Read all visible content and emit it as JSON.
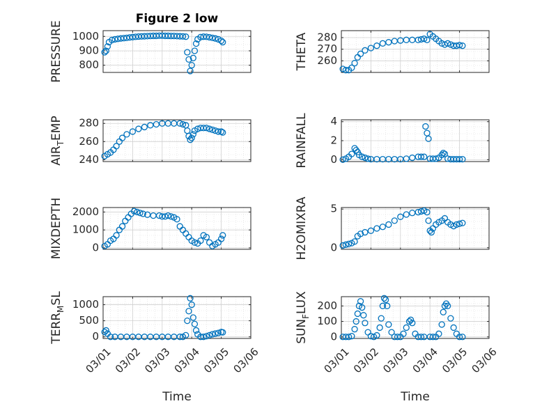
{
  "title": "Figure 2 low",
  "x_label": "Time",
  "marker_color": "#0072BD",
  "x_ticks": [
    "03/01",
    "03/02",
    "03/03",
    "03/04",
    "03/05",
    "03/06"
  ],
  "chart_data": [
    {
      "type": "scatter",
      "title": "Figure 2 low",
      "ylabel_parts": [
        "PRESSURE"
      ],
      "yticks": [
        800,
        900,
        1000
      ],
      "ylim": [
        750,
        1040
      ],
      "xlim": [
        0,
        5
      ],
      "grid": true,
      "points": [
        [
          0.05,
          890
        ],
        [
          0.1,
          900
        ],
        [
          0.15,
          930
        ],
        [
          0.2,
          960
        ],
        [
          0.3,
          975
        ],
        [
          0.4,
          980
        ],
        [
          0.5,
          983
        ],
        [
          0.6,
          986
        ],
        [
          0.7,
          988
        ],
        [
          0.8,
          990
        ],
        [
          0.9,
          993
        ],
        [
          1.0,
          995
        ],
        [
          1.1,
          997
        ],
        [
          1.2,
          999
        ],
        [
          1.3,
          1000
        ],
        [
          1.4,
          1001
        ],
        [
          1.5,
          1002
        ],
        [
          1.6,
          1003
        ],
        [
          1.7,
          1004
        ],
        [
          1.8,
          1004
        ],
        [
          1.9,
          1005
        ],
        [
          2.0,
          1005
        ],
        [
          2.1,
          1004
        ],
        [
          2.2,
          1004
        ],
        [
          2.3,
          1003
        ],
        [
          2.4,
          1003
        ],
        [
          2.5,
          1002
        ],
        [
          2.6,
          1001
        ],
        [
          2.7,
          1000
        ],
        [
          2.8,
          998
        ],
        [
          2.85,
          890
        ],
        [
          2.9,
          840
        ],
        [
          2.95,
          760
        ],
        [
          3.0,
          800
        ],
        [
          3.05,
          850
        ],
        [
          3.1,
          900
        ],
        [
          3.15,
          950
        ],
        [
          3.2,
          980
        ],
        [
          3.3,
          995
        ],
        [
          3.4,
          998
        ],
        [
          3.5,
          997
        ],
        [
          3.6,
          994
        ],
        [
          3.7,
          990
        ],
        [
          3.8,
          986
        ],
        [
          3.9,
          980
        ],
        [
          4.0,
          970
        ],
        [
          4.05,
          960
        ]
      ]
    },
    {
      "type": "scatter",
      "ylabel_parts": [
        "THETA"
      ],
      "yticks": [
        260,
        270,
        280
      ],
      "ylim": [
        250,
        286
      ],
      "xlim": [
        0,
        5
      ],
      "grid": true,
      "points": [
        [
          0.05,
          253
        ],
        [
          0.15,
          252
        ],
        [
          0.25,
          252
        ],
        [
          0.35,
          254
        ],
        [
          0.45,
          258
        ],
        [
          0.55,
          263
        ],
        [
          0.65,
          266
        ],
        [
          0.8,
          269
        ],
        [
          1.0,
          271
        ],
        [
          1.2,
          273
        ],
        [
          1.4,
          275
        ],
        [
          1.6,
          276
        ],
        [
          1.8,
          277
        ],
        [
          2.0,
          277.5
        ],
        [
          2.2,
          278
        ],
        [
          2.4,
          278
        ],
        [
          2.6,
          278
        ],
        [
          2.7,
          278.5
        ],
        [
          2.8,
          279
        ],
        [
          2.9,
          278
        ],
        [
          3.0,
          283
        ],
        [
          3.1,
          281
        ],
        [
          3.2,
          279
        ],
        [
          3.3,
          277
        ],
        [
          3.4,
          275
        ],
        [
          3.5,
          274
        ],
        [
          3.6,
          275
        ],
        [
          3.7,
          274
        ],
        [
          3.8,
          273
        ],
        [
          3.9,
          273
        ],
        [
          4.0,
          273.5
        ],
        [
          4.1,
          273
        ]
      ]
    },
    {
      "type": "scatter",
      "ylabel_parts": [
        "AIR",
        "T",
        "EMP"
      ],
      "yticks": [
        240,
        260,
        280
      ],
      "ylim": [
        238,
        284
      ],
      "xlim": [
        0,
        5
      ],
      "grid": true,
      "points": [
        [
          0.05,
          244
        ],
        [
          0.15,
          246
        ],
        [
          0.25,
          248
        ],
        [
          0.35,
          251
        ],
        [
          0.45,
          255
        ],
        [
          0.55,
          260
        ],
        [
          0.65,
          264
        ],
        [
          0.8,
          268
        ],
        [
          1.0,
          271
        ],
        [
          1.2,
          274
        ],
        [
          1.4,
          276
        ],
        [
          1.6,
          278
        ],
        [
          1.8,
          279
        ],
        [
          2.0,
          280
        ],
        [
          2.2,
          280
        ],
        [
          2.4,
          280
        ],
        [
          2.6,
          280
        ],
        [
          2.7,
          279
        ],
        [
          2.8,
          278
        ],
        [
          2.85,
          272
        ],
        [
          2.9,
          266
        ],
        [
          2.95,
          262
        ],
        [
          3.0,
          264
        ],
        [
          3.05,
          268
        ],
        [
          3.1,
          272
        ],
        [
          3.2,
          274
        ],
        [
          3.3,
          275
        ],
        [
          3.4,
          275
        ],
        [
          3.5,
          275
        ],
        [
          3.6,
          274
        ],
        [
          3.7,
          273
        ],
        [
          3.8,
          272
        ],
        [
          3.9,
          271
        ],
        [
          4.0,
          271
        ],
        [
          4.05,
          270
        ]
      ]
    },
    {
      "type": "scatter",
      "ylabel_parts": [
        "RAINFALL"
      ],
      "yticks": [
        0,
        2,
        4
      ],
      "ylim": [
        -0.2,
        4.2
      ],
      "xlim": [
        0,
        5
      ],
      "grid": true,
      "points": [
        [
          0.05,
          0
        ],
        [
          0.15,
          0.1
        ],
        [
          0.25,
          0.3
        ],
        [
          0.35,
          0.6
        ],
        [
          0.45,
          1.2
        ],
        [
          0.5,
          1.0
        ],
        [
          0.55,
          0.8
        ],
        [
          0.6,
          0.5
        ],
        [
          0.7,
          0.3
        ],
        [
          0.8,
          0.2
        ],
        [
          0.9,
          0.1
        ],
        [
          1.0,
          0.05
        ],
        [
          1.2,
          0.05
        ],
        [
          1.4,
          0.05
        ],
        [
          1.6,
          0.05
        ],
        [
          1.8,
          0.05
        ],
        [
          2.0,
          0.05
        ],
        [
          2.2,
          0.1
        ],
        [
          2.4,
          0.2
        ],
        [
          2.6,
          0.3
        ],
        [
          2.7,
          0.3
        ],
        [
          2.8,
          0.3
        ],
        [
          2.85,
          3.5
        ],
        [
          2.9,
          2.8
        ],
        [
          2.95,
          2.2
        ],
        [
          3.0,
          0.1
        ],
        [
          3.1,
          0.1
        ],
        [
          3.2,
          0.1
        ],
        [
          3.3,
          0.2
        ],
        [
          3.4,
          0.5
        ],
        [
          3.45,
          0.7
        ],
        [
          3.5,
          0.6
        ],
        [
          3.6,
          0.1
        ],
        [
          3.7,
          0.05
        ],
        [
          3.8,
          0.05
        ],
        [
          3.9,
          0.05
        ],
        [
          4.0,
          0.05
        ],
        [
          4.1,
          0.05
        ]
      ]
    },
    {
      "type": "scatter",
      "ylabel_parts": [
        "MIXDEPTH"
      ],
      "yticks": [
        0,
        1000,
        2000
      ],
      "ylim": [
        -80,
        2250
      ],
      "xlim": [
        0,
        5
      ],
      "grid": true,
      "points": [
        [
          0.05,
          100
        ],
        [
          0.15,
          200
        ],
        [
          0.25,
          400
        ],
        [
          0.35,
          500
        ],
        [
          0.45,
          700
        ],
        [
          0.55,
          1000
        ],
        [
          0.65,
          1200
        ],
        [
          0.75,
          1500
        ],
        [
          0.85,
          1700
        ],
        [
          0.95,
          1900
        ],
        [
          1.05,
          2050
        ],
        [
          1.15,
          2000
        ],
        [
          1.25,
          1950
        ],
        [
          1.35,
          1900
        ],
        [
          1.5,
          1850
        ],
        [
          1.7,
          1800
        ],
        [
          1.9,
          1800
        ],
        [
          2.0,
          1750
        ],
        [
          2.1,
          1750
        ],
        [
          2.2,
          1800
        ],
        [
          2.3,
          1750
        ],
        [
          2.4,
          1700
        ],
        [
          2.5,
          1600
        ],
        [
          2.6,
          1200
        ],
        [
          2.7,
          1000
        ],
        [
          2.8,
          800
        ],
        [
          2.9,
          600
        ],
        [
          3.0,
          400
        ],
        [
          3.1,
          300
        ],
        [
          3.2,
          250
        ],
        [
          3.3,
          400
        ],
        [
          3.4,
          700
        ],
        [
          3.5,
          600
        ],
        [
          3.6,
          300
        ],
        [
          3.7,
          100
        ],
        [
          3.8,
          200
        ],
        [
          3.9,
          300
        ],
        [
          4.0,
          500
        ],
        [
          4.05,
          700
        ]
      ]
    },
    {
      "type": "scatter",
      "ylabel_parts": [
        "H2OMIXRA"
      ],
      "yticks": [
        0,
        5
      ],
      "ylim": [
        -0.2,
        5.2
      ],
      "xlim": [
        0,
        5
      ],
      "grid": true,
      "points": [
        [
          0.05,
          0.3
        ],
        [
          0.15,
          0.4
        ],
        [
          0.25,
          0.5
        ],
        [
          0.35,
          0.6
        ],
        [
          0.45,
          0.8
        ],
        [
          0.55,
          1.5
        ],
        [
          0.65,
          1.8
        ],
        [
          0.8,
          2.0
        ],
        [
          1.0,
          2.2
        ],
        [
          1.2,
          2.5
        ],
        [
          1.4,
          2.7
        ],
        [
          1.6,
          3.0
        ],
        [
          1.8,
          3.5
        ],
        [
          2.0,
          4.0
        ],
        [
          2.2,
          4.3
        ],
        [
          2.4,
          4.5
        ],
        [
          2.6,
          4.6
        ],
        [
          2.7,
          4.7
        ],
        [
          2.8,
          4.8
        ],
        [
          2.9,
          4.6
        ],
        [
          2.95,
          3.5
        ],
        [
          3.0,
          2.2
        ],
        [
          3.05,
          2.0
        ],
        [
          3.1,
          2.5
        ],
        [
          3.2,
          3.0
        ],
        [
          3.3,
          3.3
        ],
        [
          3.4,
          3.5
        ],
        [
          3.5,
          3.8
        ],
        [
          3.6,
          3.3
        ],
        [
          3.7,
          3.0
        ],
        [
          3.8,
          2.8
        ],
        [
          3.9,
          3.0
        ],
        [
          4.0,
          3.1
        ],
        [
          4.1,
          3.2
        ]
      ]
    },
    {
      "type": "scatter",
      "ylabel_parts": [
        "TERR",
        "M",
        "SL"
      ],
      "yticks": [
        0,
        500,
        1000
      ],
      "ylim": [
        -50,
        1250
      ],
      "xlim": [
        0,
        5
      ],
      "grid": true,
      "points": [
        [
          0.05,
          150
        ],
        [
          0.1,
          200
        ],
        [
          0.15,
          100
        ],
        [
          0.25,
          0
        ],
        [
          0.4,
          0
        ],
        [
          0.6,
          0
        ],
        [
          0.8,
          0
        ],
        [
          1.0,
          0
        ],
        [
          1.2,
          0
        ],
        [
          1.4,
          0
        ],
        [
          1.6,
          0
        ],
        [
          1.8,
          0
        ],
        [
          2.0,
          0
        ],
        [
          2.2,
          0
        ],
        [
          2.4,
          0
        ],
        [
          2.6,
          0
        ],
        [
          2.7,
          0
        ],
        [
          2.8,
          50
        ],
        [
          2.85,
          500
        ],
        [
          2.9,
          800
        ],
        [
          2.95,
          1200
        ],
        [
          3.0,
          1000
        ],
        [
          3.05,
          600
        ],
        [
          3.1,
          400
        ],
        [
          3.15,
          200
        ],
        [
          3.2,
          80
        ],
        [
          3.3,
          0
        ],
        [
          3.4,
          0
        ],
        [
          3.5,
          20
        ],
        [
          3.6,
          50
        ],
        [
          3.7,
          80
        ],
        [
          3.8,
          100
        ],
        [
          3.9,
          120
        ],
        [
          4.0,
          150
        ],
        [
          4.05,
          140
        ]
      ]
    },
    {
      "type": "scatter",
      "ylabel_parts": [
        "SUN",
        "F",
        "LUX"
      ],
      "yticks": [
        0,
        100,
        200
      ],
      "ylim": [
        -10,
        260
      ],
      "xlim": [
        0,
        5
      ],
      "grid": true,
      "points": [
        [
          0.05,
          0
        ],
        [
          0.15,
          0
        ],
        [
          0.25,
          0
        ],
        [
          0.35,
          5
        ],
        [
          0.45,
          50
        ],
        [
          0.5,
          100
        ],
        [
          0.55,
          150
        ],
        [
          0.6,
          200
        ],
        [
          0.65,
          230
        ],
        [
          0.7,
          190
        ],
        [
          0.75,
          140
        ],
        [
          0.8,
          90
        ],
        [
          0.9,
          30
        ],
        [
          1.0,
          5
        ],
        [
          1.1,
          0
        ],
        [
          1.2,
          10
        ],
        [
          1.3,
          60
        ],
        [
          1.35,
          120
        ],
        [
          1.4,
          200
        ],
        [
          1.45,
          250
        ],
        [
          1.5,
          240
        ],
        [
          1.55,
          200
        ],
        [
          1.6,
          80
        ],
        [
          1.7,
          30
        ],
        [
          1.8,
          0
        ],
        [
          1.9,
          0
        ],
        [
          2.0,
          0
        ],
        [
          2.1,
          20
        ],
        [
          2.2,
          60
        ],
        [
          2.3,
          100
        ],
        [
          2.35,
          110
        ],
        [
          2.4,
          90
        ],
        [
          2.5,
          20
        ],
        [
          2.6,
          0
        ],
        [
          2.7,
          0
        ],
        [
          2.8,
          0
        ],
        [
          3.0,
          0
        ],
        [
          3.1,
          0
        ],
        [
          3.2,
          0
        ],
        [
          3.3,
          20
        ],
        [
          3.4,
          80
        ],
        [
          3.45,
          160
        ],
        [
          3.5,
          200
        ],
        [
          3.55,
          215
        ],
        [
          3.6,
          200
        ],
        [
          3.7,
          120
        ],
        [
          3.8,
          60
        ],
        [
          3.9,
          20
        ],
        [
          4.0,
          0
        ],
        [
          4.1,
          0
        ]
      ]
    }
  ]
}
